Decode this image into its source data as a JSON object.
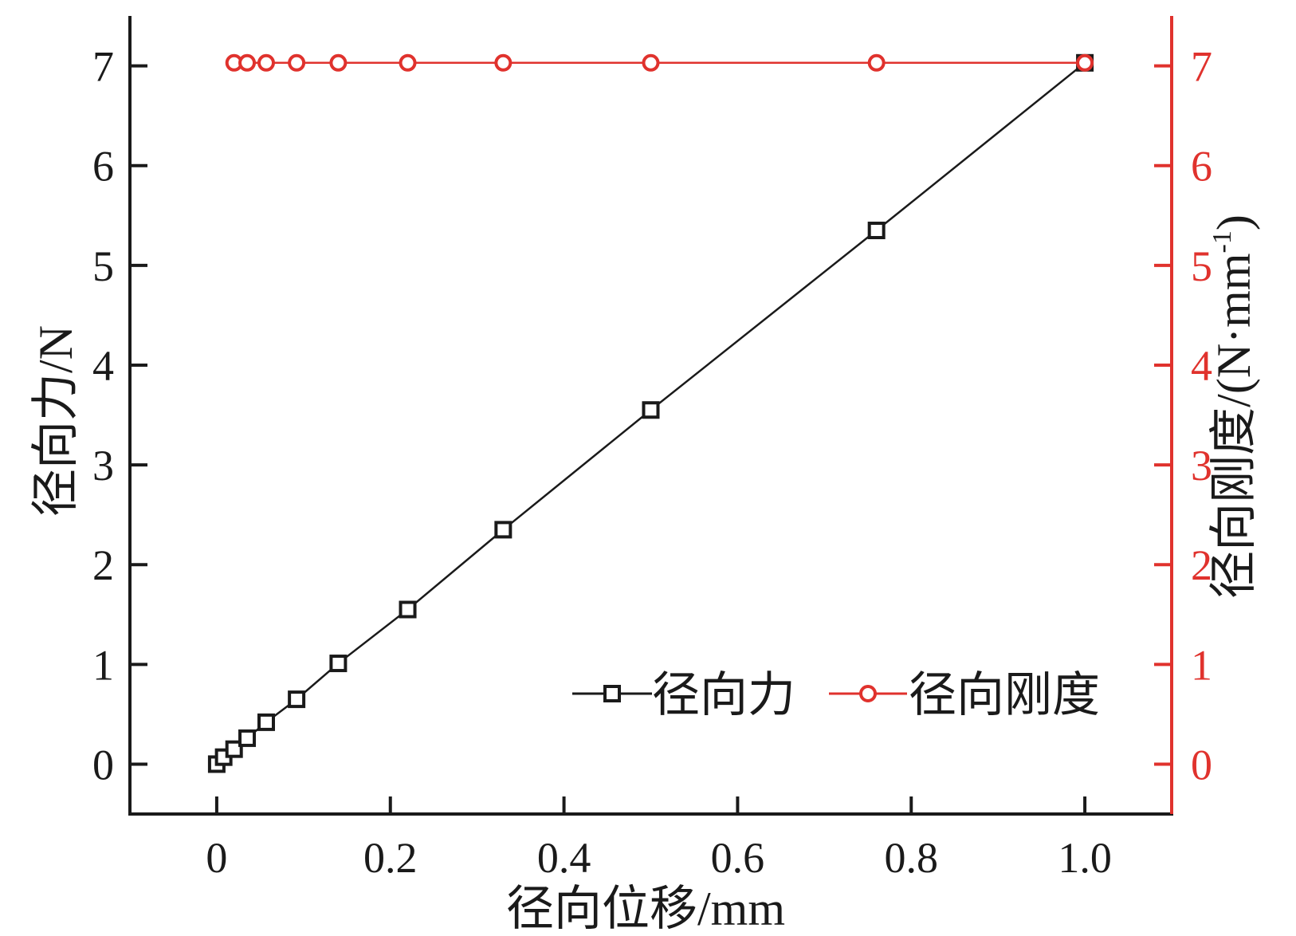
{
  "chart_data": {
    "type": "line",
    "xlabel": "径向位移/mm",
    "ylabel_left": "径向力/N",
    "ylabel_right": "径向刚度/(N·mm",
    "ylabel_right_sup": "-1",
    "ylabel_right_close": ")",
    "xlim": [
      -0.1,
      1.1
    ],
    "ylim_left": [
      -0.5,
      7.5
    ],
    "ylim_right": [
      -0.5,
      7.5
    ],
    "x_ticks": [
      0,
      0.2,
      0.4,
      0.6,
      0.8,
      1.0
    ],
    "x_tick_labels": [
      "0",
      "0.2",
      "0.4",
      "0.6",
      "0.8",
      "1.0"
    ],
    "y_ticks": [
      0,
      1,
      2,
      3,
      4,
      5,
      6,
      7
    ],
    "y_tick_labels": [
      "0",
      "1",
      "2",
      "3",
      "4",
      "5",
      "6",
      "7"
    ],
    "grid": false,
    "legend_position": "bottom-right",
    "series": [
      {
        "name": "径向力",
        "axis": "left",
        "color": "#1a1a1a",
        "marker": "square",
        "x": [
          0,
          0.008,
          0.02,
          0.035,
          0.057,
          0.092,
          0.14,
          0.22,
          0.33,
          0.5,
          0.76,
          1.0
        ],
        "y": [
          0.0,
          0.07,
          0.15,
          0.26,
          0.42,
          0.65,
          1.01,
          1.55,
          2.35,
          3.55,
          5.35,
          7.03
        ]
      },
      {
        "name": "径向刚度",
        "axis": "right",
        "color": "#e0322d",
        "marker": "circle",
        "x": [
          0.02,
          0.035,
          0.057,
          0.092,
          0.14,
          0.22,
          0.33,
          0.5,
          0.76,
          1.0
        ],
        "y": [
          7.03,
          7.03,
          7.03,
          7.03,
          7.03,
          7.03,
          7.03,
          7.03,
          7.03,
          7.03
        ]
      }
    ]
  }
}
